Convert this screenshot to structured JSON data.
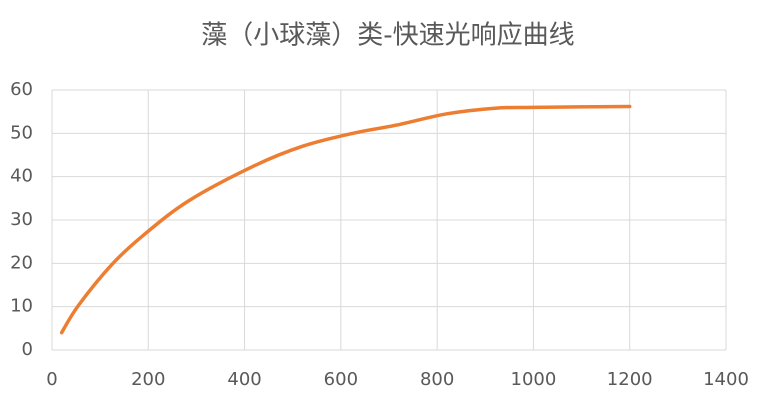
{
  "chart_data": {
    "type": "line",
    "title": "藻（小球藻）类-快速光响应曲线",
    "x": [
      20,
      55,
      125,
      190,
      285,
      420,
      520,
      625,
      720,
      820,
      920,
      1000,
      1200
    ],
    "series": [
      {
        "color": "#ed7d31",
        "values": [
          4,
          10.3,
          19.8,
          26.5,
          34.5,
          42.5,
          47,
          50,
          52,
          54.5,
          55.8,
          56,
          56.2
        ]
      }
    ],
    "xlim": [
      0,
      1400
    ],
    "xticks": [
      0,
      200,
      400,
      600,
      800,
      1000,
      1200,
      1400
    ],
    "ylim": [
      0,
      60
    ],
    "yticks": [
      0,
      10,
      20,
      30,
      40,
      50,
      60
    ],
    "grid": true
  }
}
